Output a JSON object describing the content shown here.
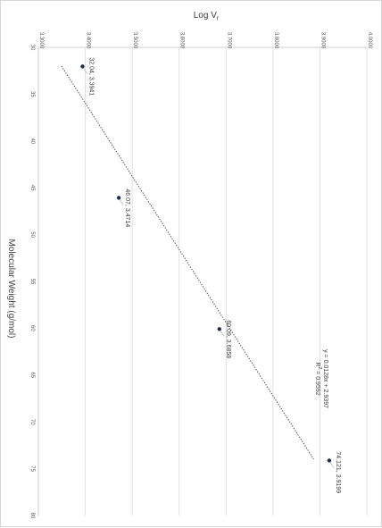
{
  "chart_data": {
    "type": "scatter",
    "rotated": "90deg clockwise",
    "xlabel": "Molecular Weight (g/mol)",
    "ylabel": "Log V",
    "ylabel_subscript": "r",
    "xlim": [
      30,
      80
    ],
    "ylim": [
      3.3,
      4.0
    ],
    "x_ticks": [
      "30",
      "35",
      "40",
      "45",
      "50",
      "55",
      "60",
      "65",
      "70",
      "75",
      "80"
    ],
    "y_ticks": [
      "3.3000",
      "3.4000",
      "3.5000",
      "3.6000",
      "3.7000",
      "3.8000",
      "3.9000",
      "4.0000"
    ],
    "grid": true,
    "points": [
      {
        "x": 32.04,
        "y": 3.3941,
        "label": "32.04, 3.3941"
      },
      {
        "x": 46.07,
        "y": 3.4714,
        "label": "46.07, 3.4714"
      },
      {
        "x": 60.09,
        "y": 3.6858,
        "label": "60.09, 3.6858"
      },
      {
        "x": 74.121,
        "y": 3.9199,
        "label": "74.121, 3.9199"
      }
    ],
    "trendline": {
      "slope": 0.0128,
      "intercept": 2.9397,
      "x_range": [
        32,
        74
      ],
      "equation": "y = 0.0128x + 2.9397",
      "r2_prefix": "R",
      "r2_sup": "2",
      "r2_value": " = 0.9592"
    },
    "colors": {
      "point": "#1f2d4e",
      "grid": "#d9d9d9",
      "trend": "#404040"
    }
  }
}
